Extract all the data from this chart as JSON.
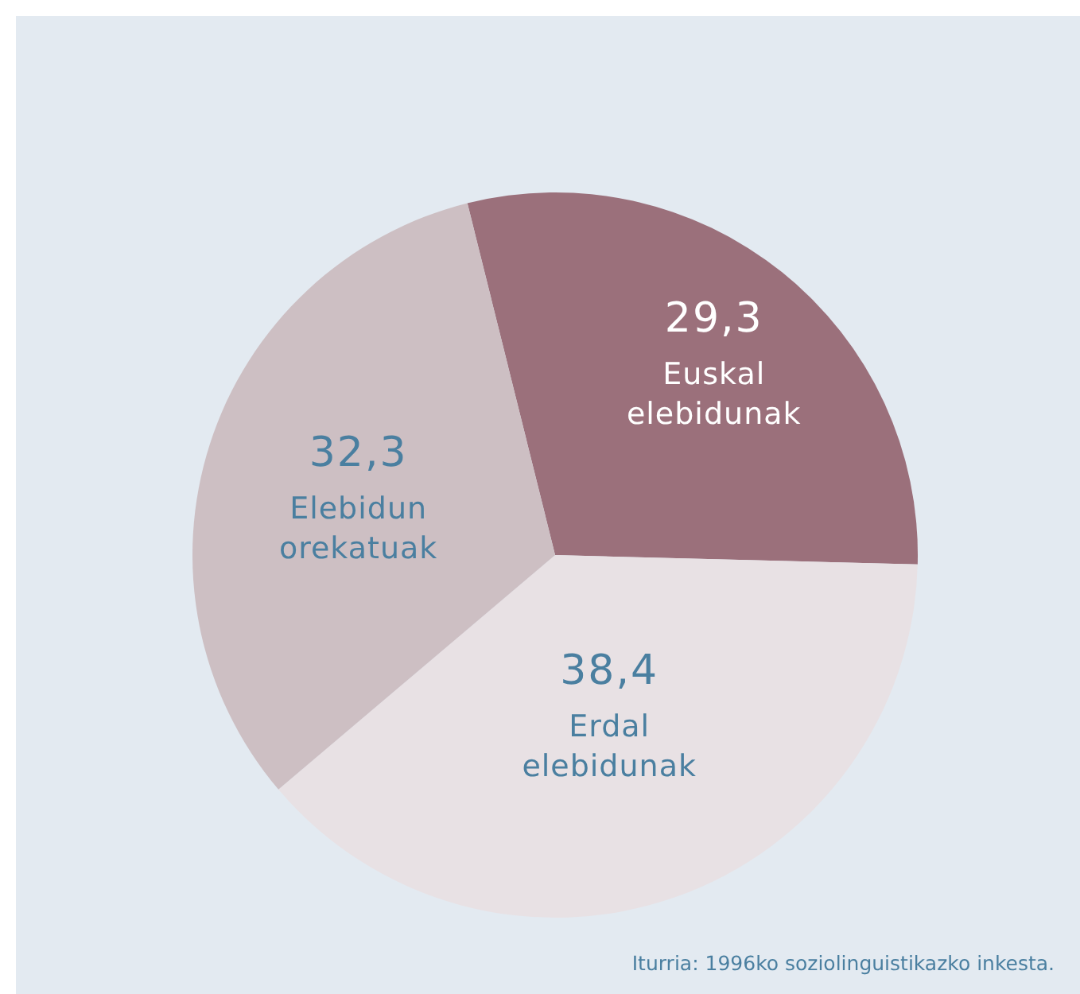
{
  "chart_data": {
    "type": "pie",
    "categories": [
      "Euskal elebidunak",
      "Erdal elebidunak",
      "Elebidun orekatuak"
    ],
    "values": [
      29.3,
      38.4,
      32.3
    ],
    "colors": [
      "#9b707b",
      "#e8e1e4",
      "#cdbfc3"
    ],
    "value_labels": [
      "29,3",
      "38,4",
      "32,3"
    ],
    "annotations": [
      "Iturria: 1996ko soziolinguistikazko inkesta."
    ]
  }
}
